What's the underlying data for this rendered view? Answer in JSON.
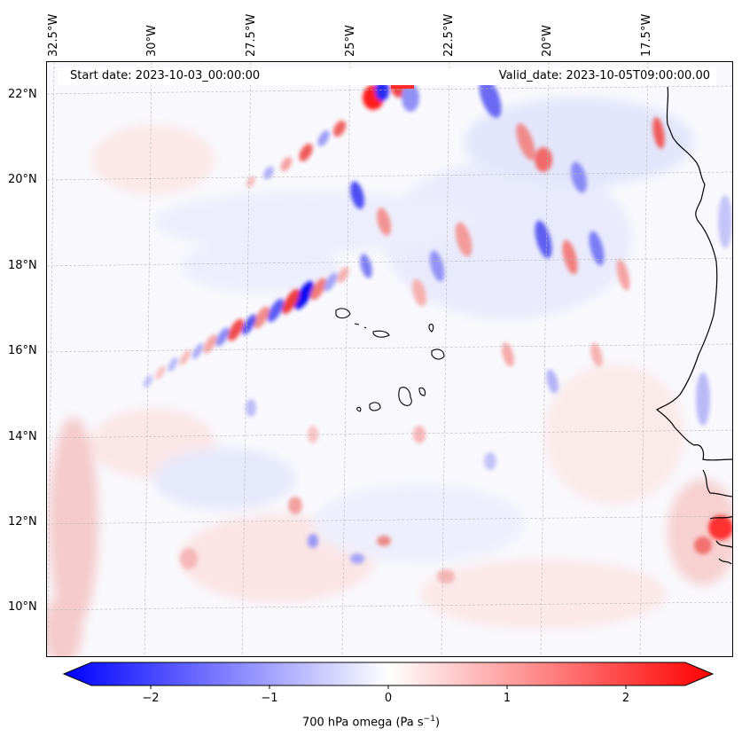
{
  "header": {
    "start_date": "Start date: 2023-10-03_00:00:00",
    "valid_date": "Valid_date: 2023-10-05T09:00:00.00"
  },
  "map": {
    "variable": "700 hPa omega",
    "latitude_labels": [
      "22°N",
      "20°N",
      "18°N",
      "16°N",
      "14°N",
      "12°N",
      "10°N"
    ],
    "longitude_labels": [
      "32.5°W",
      "30°W",
      "27.5°W",
      "25°W",
      "22.5°W",
      "20°W",
      "17.5°W"
    ],
    "features": [
      "Cape Verde islands",
      "West African coastline"
    ]
  },
  "colorbar": {
    "label_main": "700 hPa omega (Pa s",
    "label_exp": "−1",
    "label_end": ")",
    "ticks": [
      "−2",
      "−1",
      "0",
      "1",
      "2"
    ],
    "tick_values": [
      -2,
      -1,
      0,
      1,
      2
    ],
    "range": [
      -2.5,
      2.5
    ],
    "colors": {
      "negative": "#0000ff",
      "zero": "#ffffff",
      "positive": "#ff0000"
    }
  }
}
